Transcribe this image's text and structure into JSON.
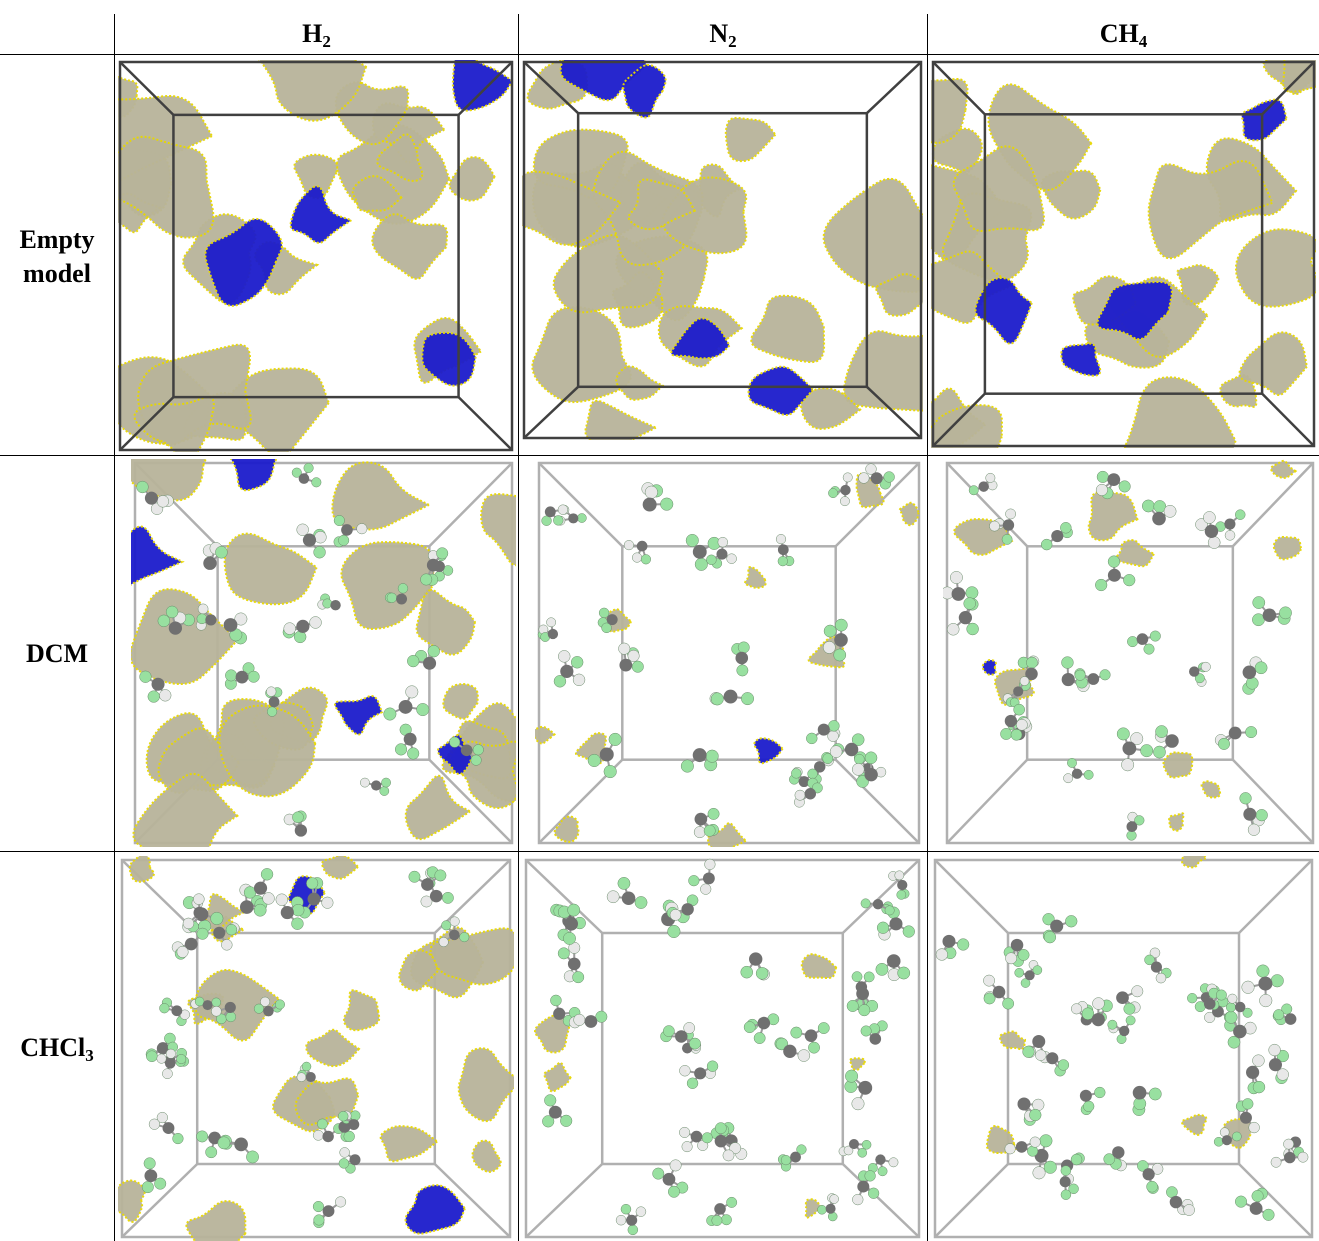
{
  "columns": [
    {
      "name": "H",
      "sub": "2"
    },
    {
      "name": "N",
      "sub": "2"
    },
    {
      "name": "CH",
      "sub": "4"
    }
  ],
  "rows": [
    {
      "line1": "Empty",
      "line2": "model"
    },
    {
      "line1": "DCM",
      "line2": ""
    },
    {
      "line1": "CHCl",
      "sub": "3"
    }
  ],
  "colors": {
    "pore_surface": "#b8b49a",
    "pore_edge": "#e8d800",
    "blue_region": "#1c1ccc",
    "box_empty": "#404040",
    "box_solvent": "#b0b0b0",
    "chlorine_atom": "#98e0a0",
    "carbon_atom": "#707070",
    "hydrogen_atom": "#e8e8e8"
  }
}
